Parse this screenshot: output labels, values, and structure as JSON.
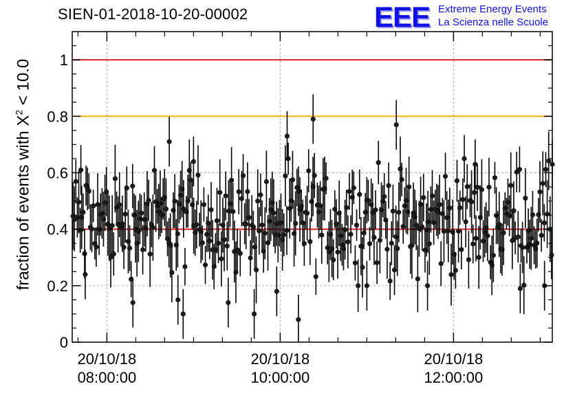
{
  "chart_data": {
    "type": "scatter",
    "title": "SIEN-01-2018-10-20-00002",
    "ylabel_prefix": "fraction of events with X",
    "ylabel_sup": "2",
    "ylabel_suffix": " < 10.0",
    "ylim": [
      0,
      1.1
    ],
    "yticks": [
      "0",
      "0.2",
      "0.4",
      "0.6",
      "0.8",
      "1"
    ],
    "ytick_values": [
      0,
      0.2,
      0.4,
      0.6,
      0.8,
      1.0
    ],
    "xlim_hours": [
      7.6,
      13.14
    ],
    "xticks": [
      {
        "hour": 8,
        "date": "20/10/18",
        "time": "08:00:00"
      },
      {
        "hour": 10,
        "date": "20/10/18",
        "time": "10:00:00"
      },
      {
        "hour": 12,
        "date": "20/10/18",
        "time": "12:00:00"
      }
    ],
    "grid": true,
    "reference_lines": [
      {
        "y": 1.0,
        "color": "#e02020"
      },
      {
        "y": 0.8,
        "color": "#ffb000"
      },
      {
        "y": 0.4,
        "color": "#e02020"
      }
    ],
    "series": [
      {
        "name": "fraction",
        "x_start_hour": 7.6,
        "x_end_hour": 13.14,
        "mean": 0.43,
        "typical_error": 0.08,
        "notable_points": [
          {
            "x": 8.72,
            "y": 0.71
          },
          {
            "x": 9.96,
            "y": 0.18
          },
          {
            "x": 10.08,
            "y": 0.73
          },
          {
            "x": 10.21,
            "y": 0.08
          },
          {
            "x": 10.38,
            "y": 0.79
          },
          {
            "x": 11.34,
            "y": 0.77
          },
          {
            "x": 9.7,
            "y": 0.1
          },
          {
            "x": 9.4,
            "y": 0.14
          },
          {
            "x": 8.3,
            "y": 0.14
          },
          {
            "x": 8.82,
            "y": 0.15
          },
          {
            "x": 8.88,
            "y": 0.1
          },
          {
            "x": 11.0,
            "y": 0.2
          },
          {
            "x": 11.7,
            "y": 0.2
          },
          {
            "x": 13.05,
            "y": 0.2
          },
          {
            "x": 12.77,
            "y": 0.19
          },
          {
            "x": 9.0,
            "y": 0.64
          },
          {
            "x": 12.25,
            "y": 0.63
          },
          {
            "x": 13.14,
            "y": 0.63
          },
          {
            "x": 7.7,
            "y": 0.61
          },
          {
            "x": 7.75,
            "y": 0.24
          }
        ]
      }
    ]
  },
  "logo": {
    "mark": "EEE",
    "line1": "Extreme Energy Events",
    "line2": "La Scienza nelle Scuole"
  }
}
